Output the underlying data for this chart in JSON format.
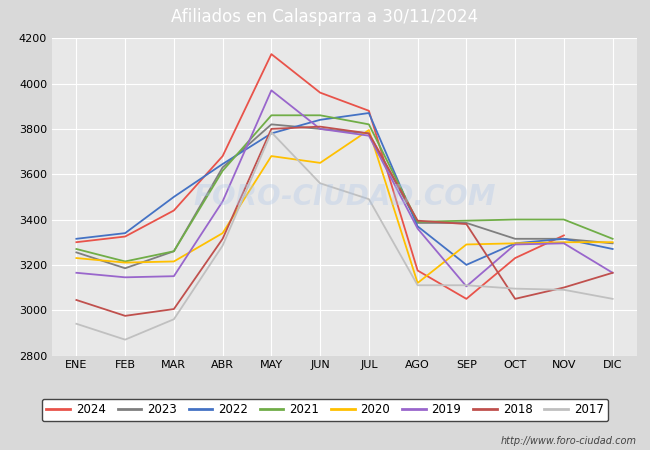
{
  "title": "Afiliados en Calasparra a 30/11/2024",
  "title_color": "white",
  "title_bg_color": "#5b9bd5",
  "ylim": [
    2800,
    4200
  ],
  "yticks": [
    2800,
    3000,
    3200,
    3400,
    3600,
    3800,
    4000,
    4200
  ],
  "months": [
    "ENE",
    "FEB",
    "MAR",
    "ABR",
    "MAY",
    "JUN",
    "JUL",
    "AGO",
    "SEP",
    "OCT",
    "NOV",
    "DIC"
  ],
  "watermark": "http://www.foro-ciudad.com",
  "series": {
    "2024": {
      "color": "#e8534a",
      "data": [
        3300,
        3325,
        3440,
        3680,
        4130,
        3960,
        3880,
        3175,
        3050,
        3230,
        3330,
        null
      ]
    },
    "2023": {
      "color": "#7f7f7f",
      "data": [
        3255,
        3185,
        3260,
        3630,
        3820,
        3800,
        3780,
        3385,
        3385,
        3315,
        3315,
        3295
      ]
    },
    "2022": {
      "color": "#4472c4",
      "data": [
        3315,
        3340,
        3500,
        3645,
        3780,
        3840,
        3870,
        3370,
        3200,
        3295,
        3315,
        3270
      ]
    },
    "2021": {
      "color": "#70ad47",
      "data": [
        3270,
        3215,
        3260,
        3615,
        3860,
        3860,
        3820,
        3390,
        3395,
        3400,
        3400,
        3315
      ]
    },
    "2020": {
      "color": "#ffc000",
      "data": [
        3230,
        3210,
        3215,
        3340,
        3680,
        3650,
        3795,
        3120,
        3290,
        3295,
        3300,
        3300
      ]
    },
    "2019": {
      "color": "#9966cc",
      "data": [
        3165,
        3145,
        3150,
        3480,
        3970,
        3800,
        3770,
        3360,
        3105,
        3290,
        3295,
        3165
      ]
    },
    "2018": {
      "color": "#c0504d",
      "data": [
        3045,
        2975,
        3005,
        3315,
        3800,
        3810,
        3780,
        3395,
        3380,
        3050,
        3100,
        3165
      ]
    },
    "2017": {
      "color": "#c0c0c0",
      "data": [
        2940,
        2870,
        2960,
        3285,
        3785,
        3560,
        3490,
        3110,
        3110,
        3095,
        3090,
        3050
      ]
    }
  },
  "legend_order": [
    "2024",
    "2023",
    "2022",
    "2021",
    "2020",
    "2019",
    "2018",
    "2017"
  ],
  "bg_color": "#d9d9d9",
  "plot_bg_color": "#e8e8e8",
  "grid_color": "white"
}
